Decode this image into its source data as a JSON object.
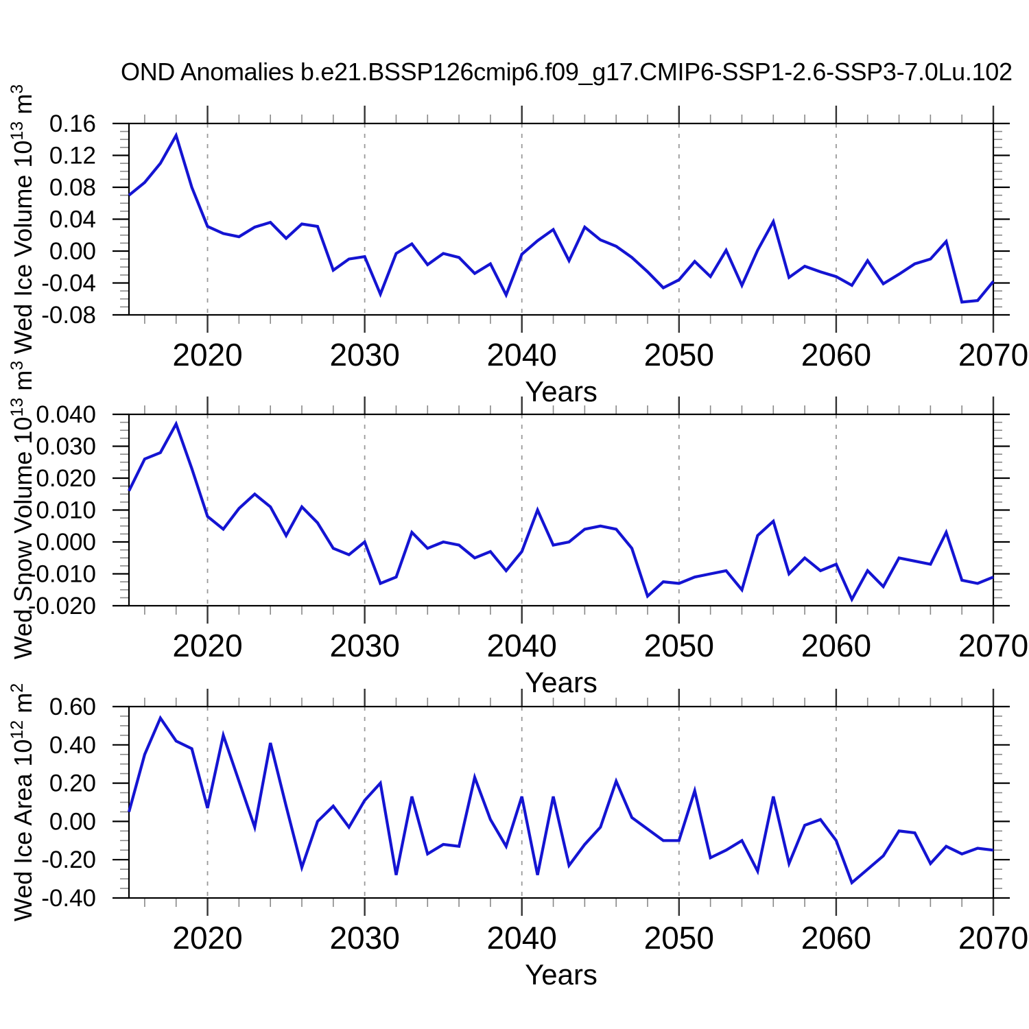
{
  "title": "OND Anomalies b.e21.BSSP126cmip6.f09_g17.CMIP6-SSP1-2.6-SSP3-7.0Lu.102",
  "colors": {
    "line": "#1414d2",
    "gridline": "#999999",
    "axis": "#000000",
    "x_major_tick": "#333333",
    "minor_tick": "#888888",
    "background": "#ffffff"
  },
  "x_axis": {
    "label": "Years",
    "min": 2015,
    "max": 2070,
    "major_ticks": [
      2020,
      2030,
      2040,
      2050,
      2060,
      2070
    ],
    "major_labels": [
      "2020",
      "2030",
      "2040",
      "2050",
      "2060",
      "2070"
    ],
    "minor_tick_step": 2,
    "gridline_years": [
      2020,
      2030,
      2040,
      2050,
      2060
    ]
  },
  "chart_data": [
    {
      "type": "line",
      "name": "wed-ice-volume",
      "ylabel_parts": [
        {
          "t": "Wed Ice Volume 10"
        },
        {
          "t": "13",
          "sup": true
        },
        {
          "t": " m"
        },
        {
          "t": "3",
          "sup": true
        }
      ],
      "ylim": [
        -0.08,
        0.16
      ],
      "ytick_step": 0.04,
      "yminor_step": 0.01,
      "ytick_labels": [
        "0.16",
        "0.12",
        "0.08",
        "0.04",
        "0.00",
        "-0.04",
        "-0.08"
      ],
      "x_start": 2015,
      "x_step": 1,
      "values": [
        0.07,
        0.086,
        0.11,
        0.145,
        0.08,
        0.031,
        0.022,
        0.018,
        0.03,
        0.036,
        0.016,
        0.034,
        0.031,
        -0.024,
        -0.01,
        -0.007,
        -0.054,
        -0.003,
        0.009,
        -0.017,
        -0.003,
        -0.008,
        -0.028,
        -0.016,
        -0.055,
        -0.004,
        0.013,
        0.027,
        -0.012,
        0.03,
        0.014,
        0.006,
        -0.008,
        -0.026,
        -0.046,
        -0.036,
        -0.013,
        -0.032,
        0.001,
        -0.043,
        0.001,
        0.037,
        -0.033,
        -0.019,
        -0.026,
        -0.032,
        -0.043,
        -0.012,
        -0.041,
        -0.029,
        -0.016,
        -0.01,
        0.012,
        -0.064,
        -0.062,
        -0.038
      ]
    },
    {
      "type": "line",
      "name": "wed-snow-volume",
      "ylabel_parts": [
        {
          "t": "Wed Snow Volume 10"
        },
        {
          "t": "13",
          "sup": true
        },
        {
          "t": " m"
        },
        {
          "t": "3",
          "sup": true
        }
      ],
      "ylim": [
        -0.02,
        0.04
      ],
      "ytick_step": 0.01,
      "yminor_step": 0.0025,
      "ytick_labels": [
        "0.040",
        "0.030",
        "0.020",
        "0.010",
        "0.000",
        "-0.010",
        "-0.020"
      ],
      "x_start": 2015,
      "x_step": 1,
      "values": [
        0.016,
        0.026,
        0.028,
        0.037,
        0.023,
        0.008,
        0.004,
        0.0105,
        0.015,
        0.011,
        0.002,
        0.011,
        0.006,
        -0.002,
        -0.004,
        0.0,
        -0.013,
        -0.011,
        0.003,
        -0.002,
        0.0,
        -0.001,
        -0.005,
        -0.003,
        -0.009,
        -0.003,
        0.01,
        -0.001,
        0.0,
        0.004,
        0.005,
        0.004,
        -0.002,
        -0.017,
        -0.0125,
        -0.013,
        -0.011,
        -0.01,
        -0.009,
        -0.015,
        0.002,
        0.0065,
        -0.01,
        -0.005,
        -0.009,
        -0.007,
        -0.018,
        -0.009,
        -0.014,
        -0.005,
        -0.006,
        -0.007,
        0.003,
        -0.012,
        -0.013,
        -0.011
      ]
    },
    {
      "type": "line",
      "name": "wed-ice-area",
      "ylabel_parts": [
        {
          "t": "Wed Ice Area 10"
        },
        {
          "t": "12",
          "sup": true
        },
        {
          "t": " m"
        },
        {
          "t": "2",
          "sup": true
        }
      ],
      "ylim": [
        -0.4,
        0.6
      ],
      "ytick_step": 0.2,
      "yminor_step": 0.05,
      "ytick_labels": [
        "0.60",
        "0.40",
        "0.20",
        "0.00",
        "-0.20",
        "-0.40"
      ],
      "x_start": 2015,
      "x_step": 1,
      "values": [
        0.05,
        0.35,
        0.54,
        0.42,
        0.38,
        0.07,
        0.45,
        0.21,
        -0.03,
        0.41,
        0.08,
        -0.24,
        0.0,
        0.08,
        -0.03,
        0.11,
        0.2,
        -0.28,
        0.13,
        -0.17,
        -0.12,
        -0.13,
        0.23,
        0.01,
        -0.13,
        0.13,
        -0.28,
        0.13,
        -0.23,
        -0.12,
        -0.03,
        0.21,
        0.02,
        -0.04,
        -0.1,
        -0.1,
        0.16,
        -0.19,
        -0.15,
        -0.1,
        -0.26,
        0.13,
        -0.22,
        -0.02,
        0.01,
        -0.1,
        -0.32,
        -0.25,
        -0.18,
        -0.05,
        -0.06,
        -0.22,
        -0.13,
        -0.17,
        -0.14,
        -0.15
      ]
    }
  ]
}
